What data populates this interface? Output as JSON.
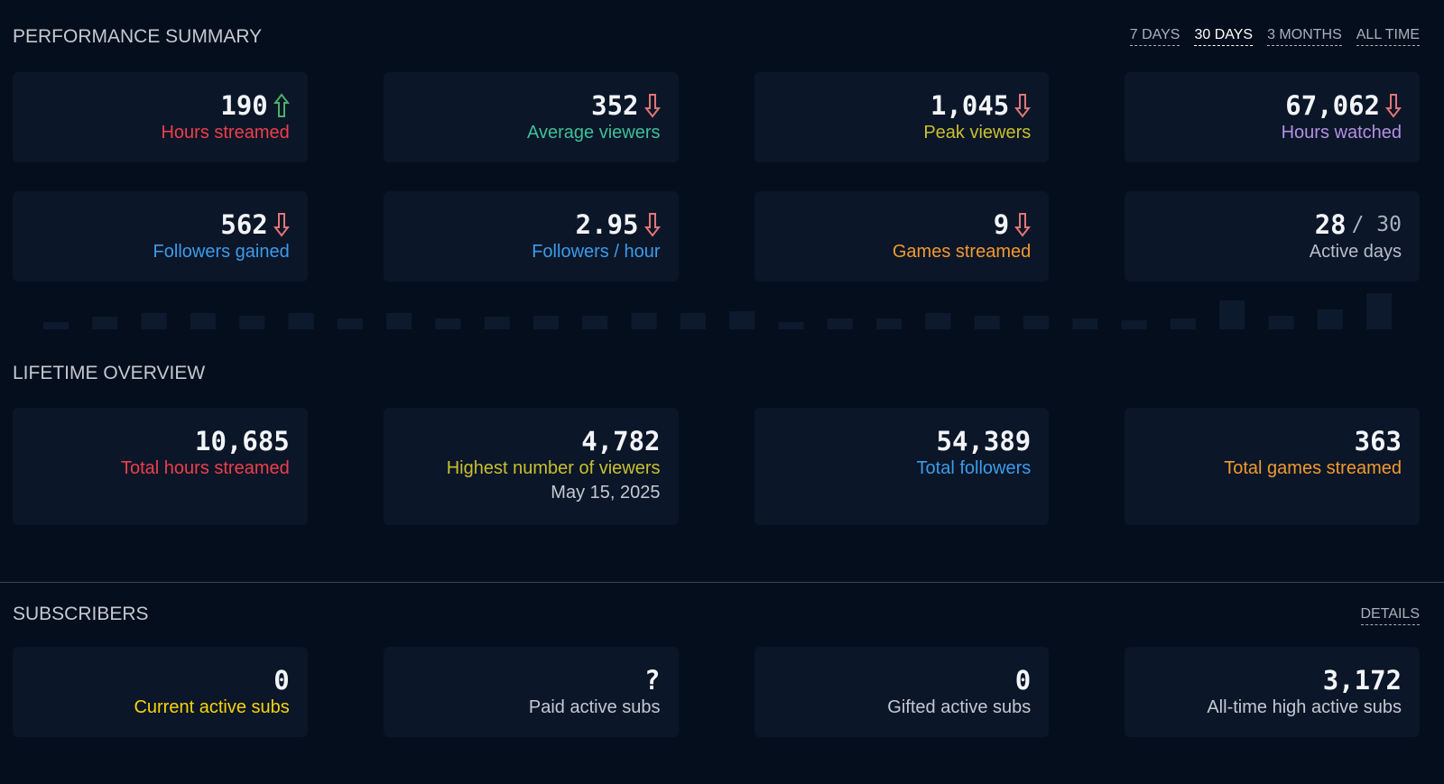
{
  "performance_summary": {
    "title": "PERFORMANCE SUMMARY",
    "periods": [
      {
        "label": "7 DAYS",
        "selected": false
      },
      {
        "label": "30 DAYS",
        "selected": true
      },
      {
        "label": "3 MONTHS",
        "selected": false
      },
      {
        "label": "ALL TIME",
        "selected": false
      }
    ],
    "cards": [
      {
        "value": "190",
        "label": "Hours streamed",
        "trend": "up",
        "color": "#ee3f4a"
      },
      {
        "value": "352",
        "label": "Average viewers",
        "trend": "down",
        "color": "#3fbf99"
      },
      {
        "value": "1,045",
        "label": "Peak viewers",
        "trend": "down",
        "color": "#c8c02e"
      },
      {
        "value": "67,062",
        "label": "Hours watched",
        "trend": "down",
        "color": "#b590e2"
      },
      {
        "value": "562",
        "label": "Followers gained",
        "trend": "down",
        "color": "#3d9be9"
      },
      {
        "value": "2.95",
        "label": "Followers / hour",
        "trend": "down",
        "color": "#3d9be9"
      },
      {
        "value": "9",
        "label": "Games streamed",
        "trend": "down",
        "color": "#f29a2e"
      },
      {
        "value": "28",
        "total": "/ 30",
        "label": "Active days",
        "color": "#b8bec8"
      }
    ]
  },
  "activity_chart": {
    "type": "bar",
    "color": "#0d1a2d",
    "values": [
      8,
      14,
      18,
      18,
      15,
      18,
      12,
      18,
      12,
      14,
      15,
      15,
      18,
      18,
      20,
      8,
      12,
      12,
      18,
      15,
      15,
      12,
      10,
      12,
      32,
      15,
      22,
      40
    ]
  },
  "lifetime_overview": {
    "title": "LIFETIME OVERVIEW",
    "cards": [
      {
        "value": "10,685",
        "label": "Total hours streamed",
        "color": "#ee3f4a"
      },
      {
        "value": "4,782",
        "label": "Highest number of viewers",
        "date": "May 15, 2025",
        "color": "#c8c02e"
      },
      {
        "value": "54,389",
        "label": "Total followers",
        "color": "#3d9be9"
      },
      {
        "value": "363",
        "label": "Total games streamed",
        "color": "#f29a2e"
      }
    ]
  },
  "subscribers": {
    "title": "SUBSCRIBERS",
    "link": "DETAILS",
    "cards": [
      {
        "value": "0",
        "label": "Current active subs",
        "color": "#f5d50a"
      },
      {
        "value": "?",
        "label": "Paid active subs",
        "color": "#c4c9d1"
      },
      {
        "value": "0",
        "label": "Gifted active subs",
        "color": "#c4c9d1"
      },
      {
        "value": "3,172",
        "label": "All-time high active subs",
        "color": "#c4c9d1"
      }
    ]
  }
}
